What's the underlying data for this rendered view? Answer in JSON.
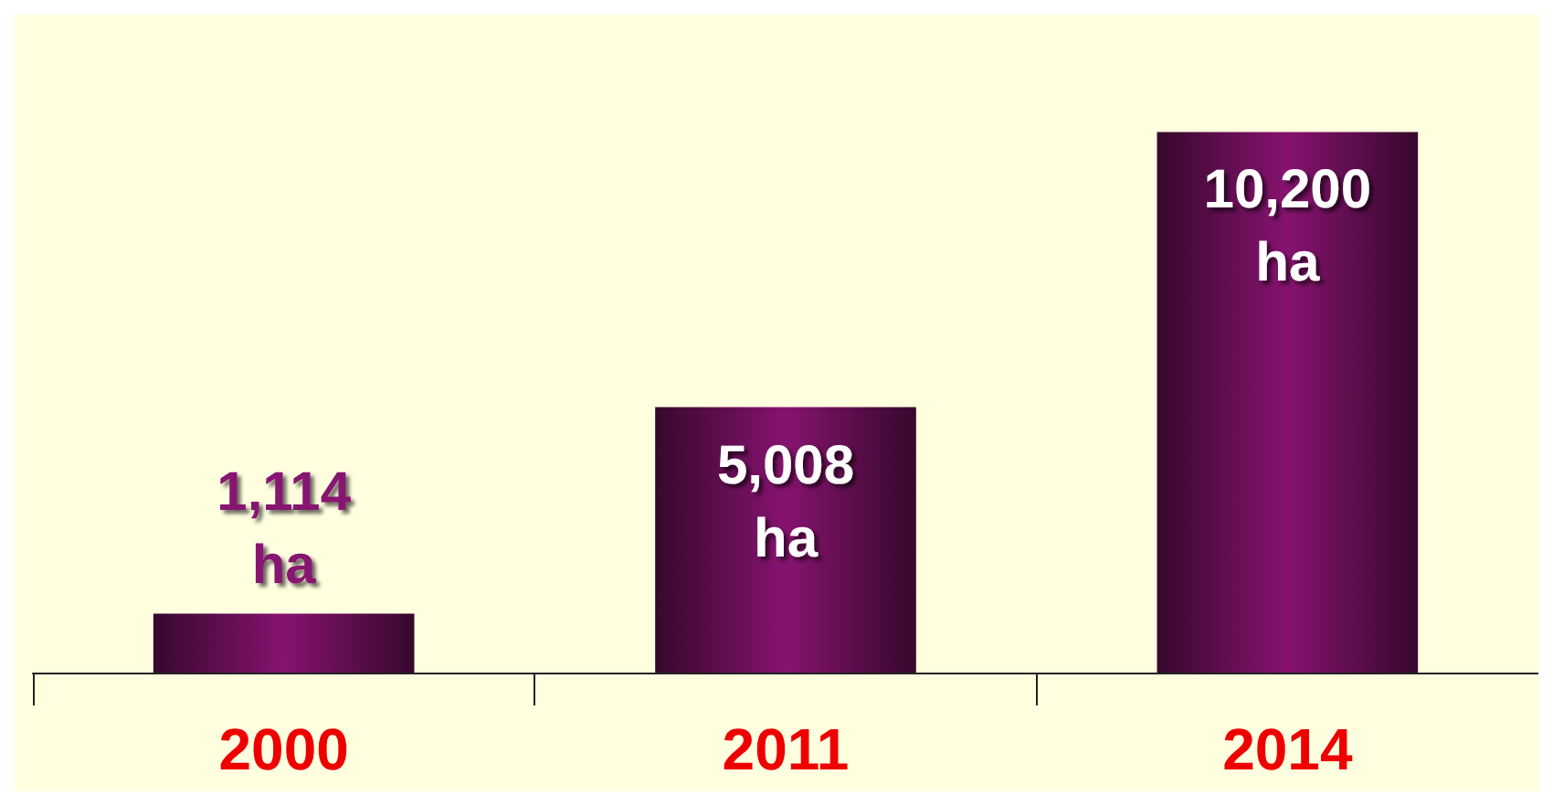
{
  "chart_data": {
    "type": "bar",
    "categories": [
      "2000",
      "2011",
      "2014"
    ],
    "values": [
      1114,
      5008,
      10200
    ],
    "color": "#86136f",
    "value_labels": [
      "1,114 ha",
      "5,008 ha",
      "10,200 ha"
    ]
  }
}
